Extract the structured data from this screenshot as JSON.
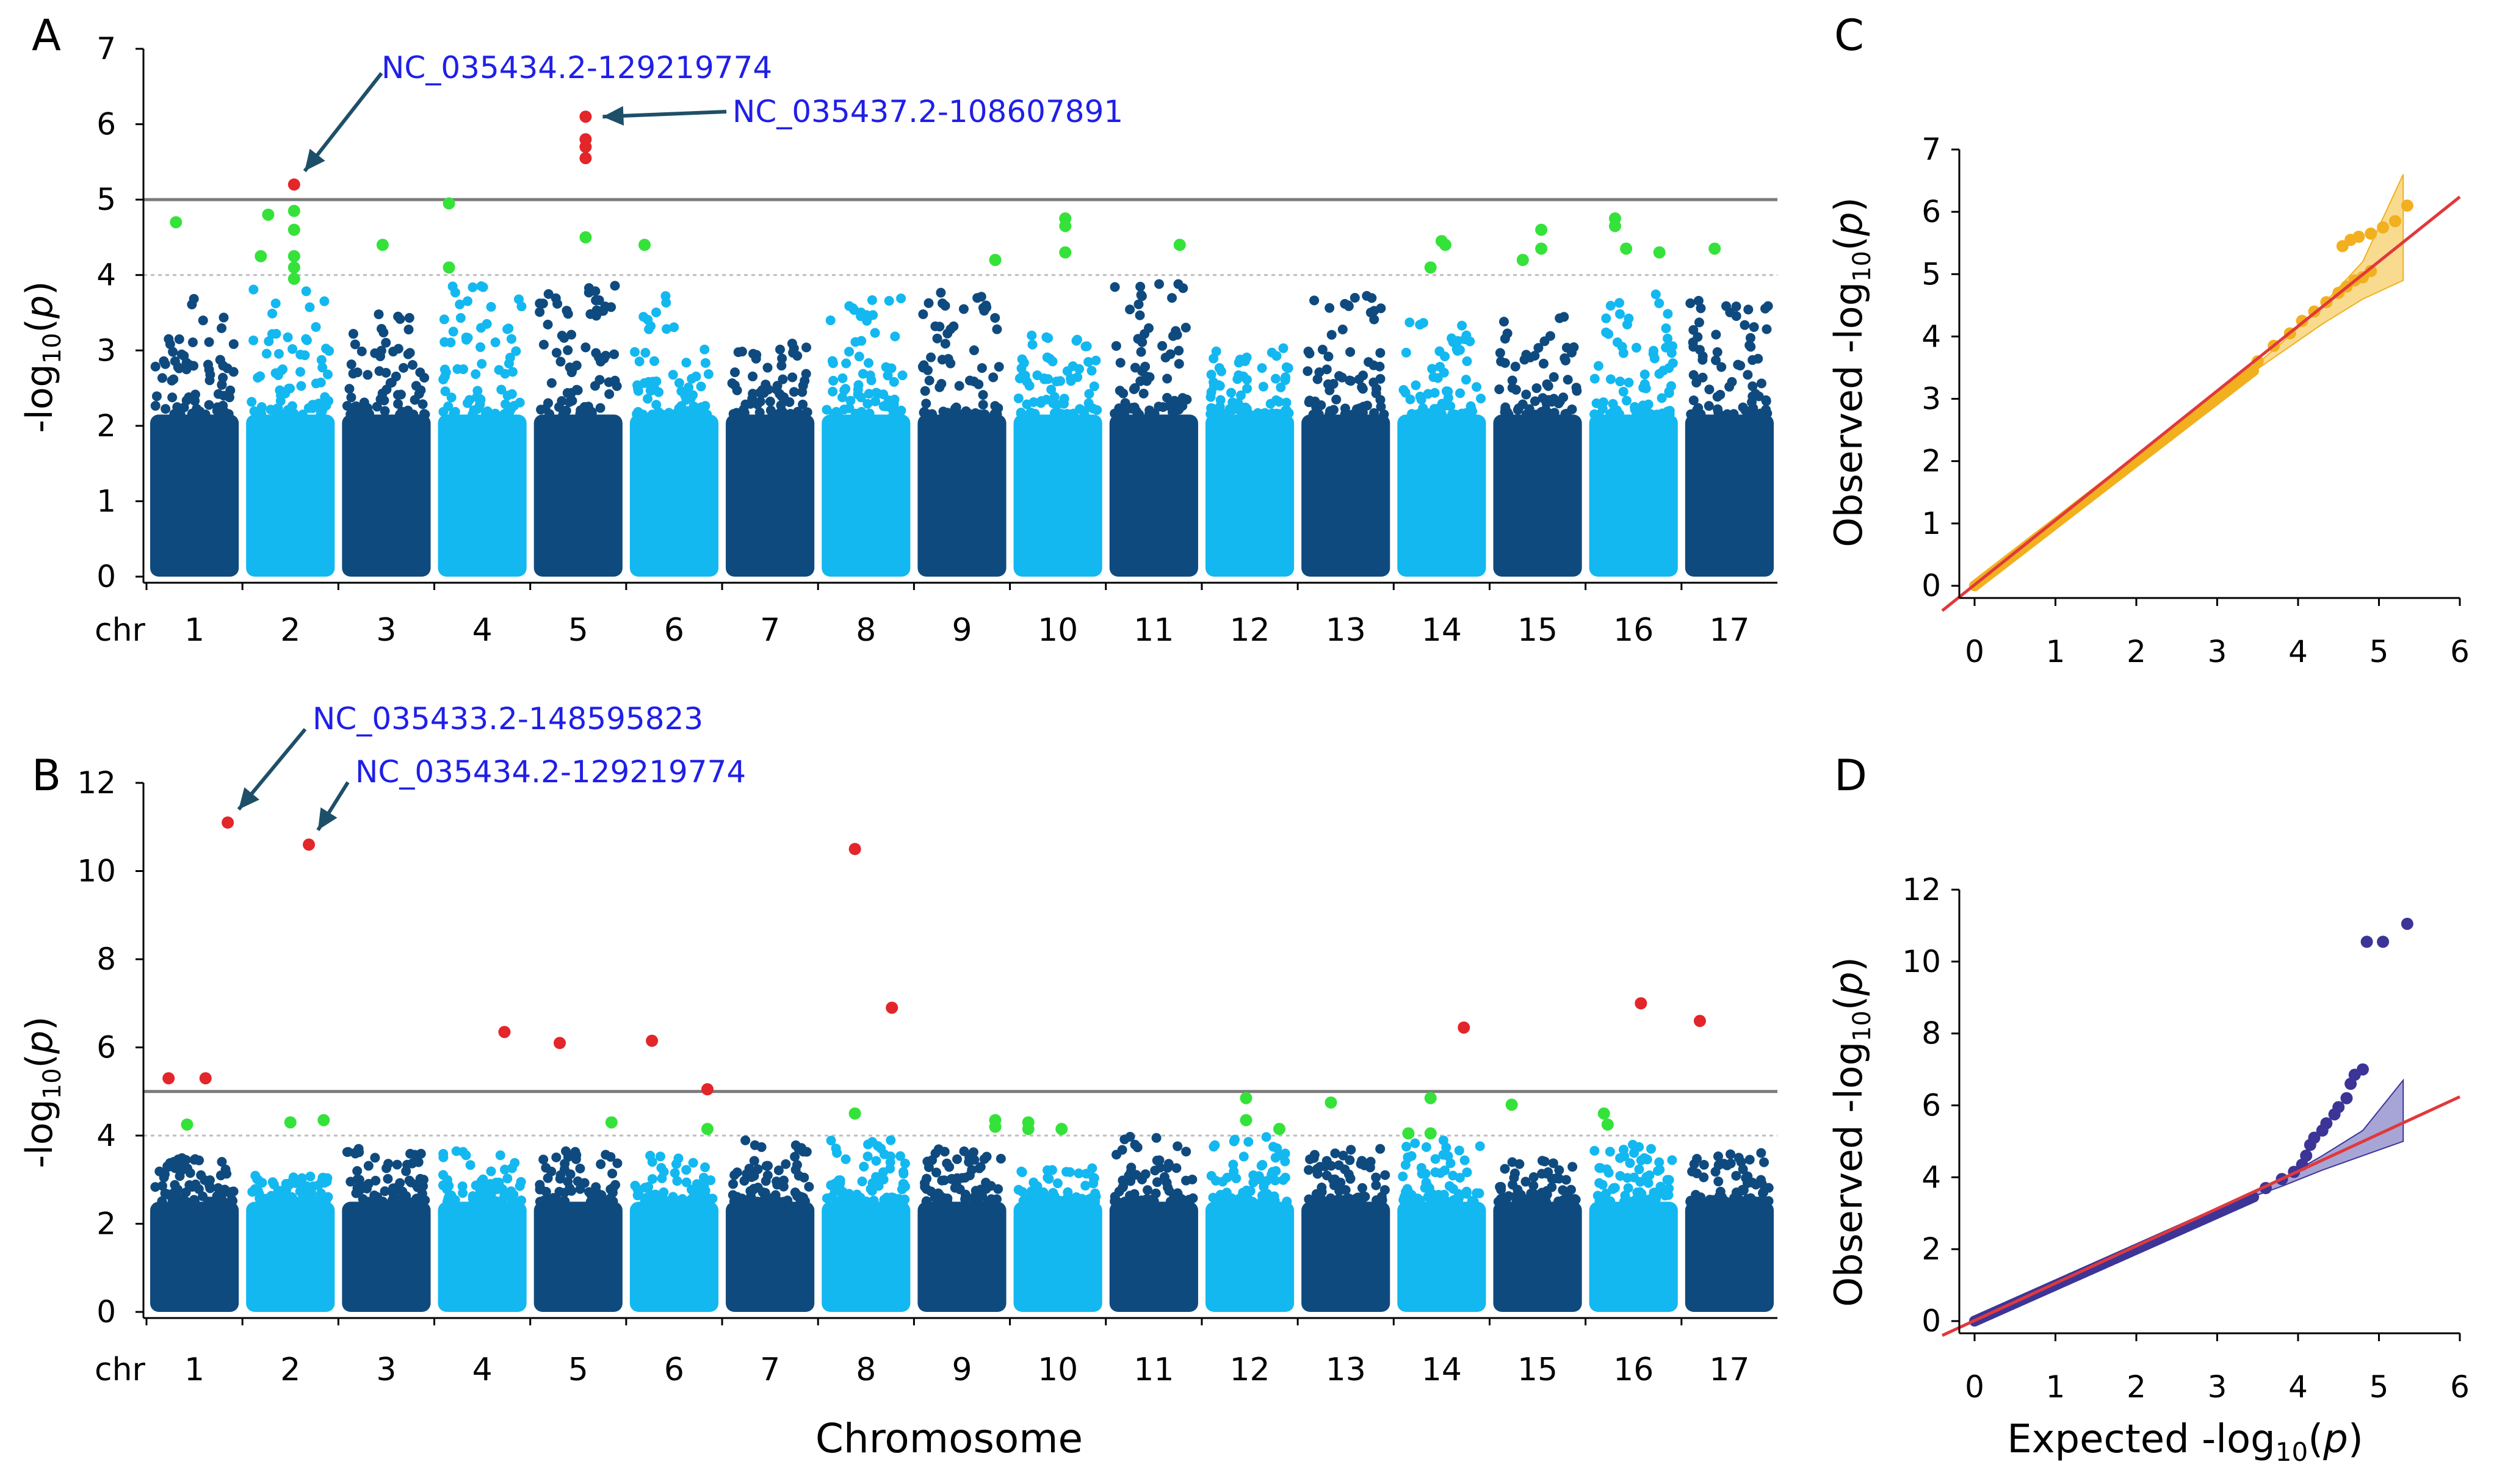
{
  "colors": {
    "dark_blue": "#0f4a7f",
    "light_blue": "#13b8f0",
    "significant": "#e3262a",
    "suggestive": "#35e23a",
    "annotation_text": "#1f1fe8",
    "arrow": "#1e4f68",
    "threshold_line": "#7a7a7a",
    "suggestive_line": "#bdbdbd",
    "qq_orange": "#f2b01e",
    "qq_orange_band": "#f5cf68",
    "qq_purple": "#3c3597",
    "qq_purple_band": "#8a87c8",
    "expected_line": "#e0393c"
  },
  "chart_data": [
    {
      "panel": "A",
      "type": "scatter",
      "subtype": "manhattan",
      "xlabel_prefix": "chr",
      "xlabel": "",
      "ylabel": "-log10(p)",
      "ylim": [
        0,
        7
      ],
      "yticks": [
        "0",
        "1",
        "2",
        "3",
        "4",
        "5",
        "6",
        "7"
      ],
      "chromosomes": [
        "1",
        "2",
        "3",
        "4",
        "5",
        "6",
        "7",
        "8",
        "9",
        "10",
        "11",
        "12",
        "13",
        "14",
        "15",
        "16",
        "17"
      ],
      "chromosome_peak_max": [
        3.7,
        3.9,
        3.5,
        4.0,
        3.9,
        3.8,
        3.1,
        3.8,
        3.9,
        3.2,
        3.9,
        3.1,
        3.8,
        3.4,
        3.5,
        3.8,
        3.7
      ],
      "significance_line": 5,
      "suggestive_line": 4,
      "significant_points": [
        {
          "chr": "2",
          "pos": 0.55,
          "y": 5.2
        },
        {
          "chr": "5",
          "pos": 0.6,
          "y": 6.1
        },
        {
          "chr": "5",
          "pos": 0.6,
          "y": 5.8
        },
        {
          "chr": "5",
          "pos": 0.6,
          "y": 5.7
        },
        {
          "chr": "5",
          "pos": 0.6,
          "y": 5.55
        }
      ],
      "suggestive_points": [
        {
          "chr": "1",
          "pos": 0.25,
          "y": 4.7
        },
        {
          "chr": "2",
          "pos": 0.1,
          "y": 4.25
        },
        {
          "chr": "2",
          "pos": 0.2,
          "y": 4.8
        },
        {
          "chr": "2",
          "pos": 0.55,
          "y": 4.85
        },
        {
          "chr": "2",
          "pos": 0.55,
          "y": 4.6
        },
        {
          "chr": "2",
          "pos": 0.55,
          "y": 4.25
        },
        {
          "chr": "2",
          "pos": 0.55,
          "y": 4.1
        },
        {
          "chr": "2",
          "pos": 0.55,
          "y": 3.95
        },
        {
          "chr": "3",
          "pos": 0.45,
          "y": 4.4
        },
        {
          "chr": "4",
          "pos": 0.05,
          "y": 4.95
        },
        {
          "chr": "4",
          "pos": 0.05,
          "y": 4.1
        },
        {
          "chr": "5",
          "pos": 0.6,
          "y": 4.5
        },
        {
          "chr": "6",
          "pos": 0.1,
          "y": 4.4
        },
        {
          "chr": "9",
          "pos": 0.95,
          "y": 4.2
        },
        {
          "chr": "10",
          "pos": 0.6,
          "y": 4.75
        },
        {
          "chr": "10",
          "pos": 0.6,
          "y": 4.65
        },
        {
          "chr": "10",
          "pos": 0.6,
          "y": 4.3
        },
        {
          "chr": "11",
          "pos": 0.85,
          "y": 4.4
        },
        {
          "chr": "14",
          "pos": 0.5,
          "y": 4.45
        },
        {
          "chr": "14",
          "pos": 0.55,
          "y": 4.4
        },
        {
          "chr": "14",
          "pos": 0.35,
          "y": 4.1
        },
        {
          "chr": "15",
          "pos": 0.55,
          "y": 4.6
        },
        {
          "chr": "15",
          "pos": 0.55,
          "y": 4.35
        },
        {
          "chr": "15",
          "pos": 0.3,
          "y": 4.2
        },
        {
          "chr": "16",
          "pos": 0.25,
          "y": 4.75
        },
        {
          "chr": "16",
          "pos": 0.25,
          "y": 4.65
        },
        {
          "chr": "16",
          "pos": 0.4,
          "y": 4.35
        },
        {
          "chr": "16",
          "pos": 0.85,
          "y": 4.3
        },
        {
          "chr": "17",
          "pos": 0.3,
          "y": 4.35
        }
      ],
      "annotations": [
        {
          "text": "NC_035434.2-129219774",
          "chr": "2",
          "pos": 0.55,
          "y": 5.2
        },
        {
          "text": "NC_035437.2-108607891",
          "chr": "5",
          "pos": 0.6,
          "y": 6.1
        }
      ]
    },
    {
      "panel": "B",
      "type": "scatter",
      "subtype": "manhattan",
      "xlabel_prefix": "chr",
      "xlabel": "Chromosome",
      "ylabel": "-log10(p)",
      "ylim": [
        0,
        12
      ],
      "yticks": [
        "0",
        "2",
        "4",
        "6",
        "8",
        "10",
        "12"
      ],
      "chromosomes": [
        "1",
        "2",
        "3",
        "4",
        "5",
        "6",
        "7",
        "8",
        "9",
        "10",
        "11",
        "12",
        "13",
        "14",
        "15",
        "16",
        "17"
      ],
      "chromosome_peak_max": [
        3.5,
        3.1,
        3.7,
        3.7,
        3.7,
        3.6,
        3.9,
        3.9,
        3.7,
        3.3,
        4.0,
        4.0,
        3.7,
        3.9,
        3.5,
        3.8,
        3.7
      ],
      "significance_line": 5,
      "suggestive_line": 4,
      "significant_points": [
        {
          "chr": "1",
          "pos": 0.15,
          "y": 5.3
        },
        {
          "chr": "1",
          "pos": 0.65,
          "y": 5.3
        },
        {
          "chr": "1",
          "pos": 0.95,
          "y": 11.1
        },
        {
          "chr": "2",
          "pos": 0.75,
          "y": 10.6
        },
        {
          "chr": "4",
          "pos": 0.8,
          "y": 6.35
        },
        {
          "chr": "5",
          "pos": 0.25,
          "y": 6.1
        },
        {
          "chr": "6",
          "pos": 0.2,
          "y": 6.15
        },
        {
          "chr": "6",
          "pos": 0.95,
          "y": 5.05
        },
        {
          "chr": "8",
          "pos": 0.35,
          "y": 10.5
        },
        {
          "chr": "8",
          "pos": 0.85,
          "y": 6.9
        },
        {
          "chr": "14",
          "pos": 0.8,
          "y": 6.45
        },
        {
          "chr": "16",
          "pos": 0.6,
          "y": 7.0
        },
        {
          "chr": "17",
          "pos": 0.1,
          "y": 6.6
        }
      ],
      "suggestive_points": [
        {
          "chr": "1",
          "pos": 0.4,
          "y": 4.25
        },
        {
          "chr": "2",
          "pos": 0.5,
          "y": 4.3
        },
        {
          "chr": "2",
          "pos": 0.95,
          "y": 4.35
        },
        {
          "chr": "5",
          "pos": 0.95,
          "y": 4.3
        },
        {
          "chr": "6",
          "pos": 0.95,
          "y": 4.15
        },
        {
          "chr": "8",
          "pos": 0.35,
          "y": 4.5
        },
        {
          "chr": "9",
          "pos": 0.95,
          "y": 4.35
        },
        {
          "chr": "9",
          "pos": 0.95,
          "y": 4.2
        },
        {
          "chr": "10",
          "pos": 0.1,
          "y": 4.3
        },
        {
          "chr": "10",
          "pos": 0.1,
          "y": 4.15
        },
        {
          "chr": "10",
          "pos": 0.55,
          "y": 4.15
        },
        {
          "chr": "12",
          "pos": 0.45,
          "y": 4.85
        },
        {
          "chr": "12",
          "pos": 0.45,
          "y": 4.35
        },
        {
          "chr": "12",
          "pos": 0.9,
          "y": 4.15
        },
        {
          "chr": "13",
          "pos": 0.3,
          "y": 4.75
        },
        {
          "chr": "14",
          "pos": 0.05,
          "y": 4.05
        },
        {
          "chr": "14",
          "pos": 0.35,
          "y": 4.05
        },
        {
          "chr": "14",
          "pos": 0.35,
          "y": 4.85
        },
        {
          "chr": "15",
          "pos": 0.15,
          "y": 4.7
        },
        {
          "chr": "16",
          "pos": 0.1,
          "y": 4.5
        },
        {
          "chr": "16",
          "pos": 0.15,
          "y": 4.25
        }
      ],
      "annotations": [
        {
          "text": "NC_035433.2-148595823",
          "chr": "1",
          "pos": 0.95,
          "y": 11.1
        },
        {
          "text": "NC_035434.2-129219774",
          "chr": "2",
          "pos": 0.75,
          "y": 10.6
        }
      ]
    },
    {
      "panel": "C",
      "type": "scatter",
      "subtype": "qq",
      "xlabel": "",
      "ylabel": "Observed -log10(p)",
      "xlim": [
        0,
        6
      ],
      "ylim": [
        0,
        7
      ],
      "xticks": [
        "0",
        "1",
        "2",
        "3",
        "4",
        "5",
        "6"
      ],
      "yticks": [
        "0",
        "1",
        "2",
        "3",
        "4",
        "5",
        "6",
        "7"
      ],
      "diagonal_from_x": -0.4,
      "diagonal_to_x": 6.0,
      "confidence_band": {
        "x": [
          3.3,
          3.8,
          4.3,
          4.8,
          5.3
        ],
        "lower": [
          3.3,
          3.75,
          4.2,
          4.6,
          4.9
        ],
        "upper": [
          3.35,
          3.9,
          4.5,
          5.2,
          6.6
        ]
      },
      "observed_tail": [
        [
          3.5,
          3.6
        ],
        [
          3.7,
          3.85
        ],
        [
          3.9,
          4.05
        ],
        [
          4.05,
          4.25
        ],
        [
          4.2,
          4.4
        ],
        [
          4.35,
          4.55
        ],
        [
          4.5,
          4.7
        ],
        [
          4.6,
          4.8
        ],
        [
          4.7,
          4.9
        ],
        [
          4.8,
          4.95
        ],
        [
          4.9,
          5.05
        ],
        [
          4.55,
          5.45
        ],
        [
          4.65,
          5.55
        ],
        [
          4.75,
          5.6
        ],
        [
          4.9,
          5.65
        ],
        [
          5.05,
          5.75
        ],
        [
          5.2,
          5.85
        ],
        [
          5.35,
          6.1
        ]
      ]
    },
    {
      "panel": "D",
      "type": "scatter",
      "subtype": "qq",
      "xlabel": "Expected -log10(p)",
      "ylabel": "Observed -log10(p)",
      "xlim": [
        0,
        6
      ],
      "ylim": [
        0,
        12
      ],
      "xticks": [
        "0",
        "1",
        "2",
        "3",
        "4",
        "5",
        "6"
      ],
      "yticks": [
        "0",
        "2",
        "4",
        "6",
        "8",
        "10",
        "12"
      ],
      "diagonal_from_x": -0.4,
      "diagonal_to_x": 6.0,
      "confidence_band": {
        "x": [
          3.3,
          3.8,
          4.3,
          4.8,
          5.3
        ],
        "lower": [
          3.35,
          3.75,
          4.2,
          4.6,
          5.0
        ],
        "upper": [
          3.45,
          3.95,
          4.6,
          5.3,
          6.7
        ]
      },
      "observed_tail": [
        [
          3.6,
          3.7
        ],
        [
          3.8,
          3.95
        ],
        [
          3.95,
          4.15
        ],
        [
          4.05,
          4.35
        ],
        [
          4.1,
          4.6
        ],
        [
          4.15,
          4.9
        ],
        [
          4.2,
          5.1
        ],
        [
          4.3,
          5.3
        ],
        [
          4.35,
          5.5
        ],
        [
          4.45,
          5.75
        ],
        [
          4.5,
          5.95
        ],
        [
          4.6,
          6.2
        ],
        [
          4.65,
          6.6
        ],
        [
          4.7,
          6.85
        ],
        [
          4.8,
          7.0
        ],
        [
          4.85,
          10.55
        ],
        [
          5.05,
          10.55
        ],
        [
          5.35,
          11.05
        ]
      ]
    }
  ],
  "panel_labels": {
    "a": "A",
    "b": "B",
    "c": "C",
    "d": "D"
  },
  "axis_text": {
    "chr_prefix": "chr",
    "manhattan_ylabel_main": "-log",
    "manhattan_ylabel_sub": "10",
    "manhattan_ylabel_open": "(",
    "manhattan_ylabel_p": "p",
    "manhattan_ylabel_close": ")",
    "chromosome_label": "Chromosome",
    "qq_ylabel_main": "Observed -log",
    "qq_xlabel_main": "Expected -log",
    "qq_sub": "10",
    "qq_open": "(",
    "qq_p": "p",
    "qq_close": ")"
  }
}
